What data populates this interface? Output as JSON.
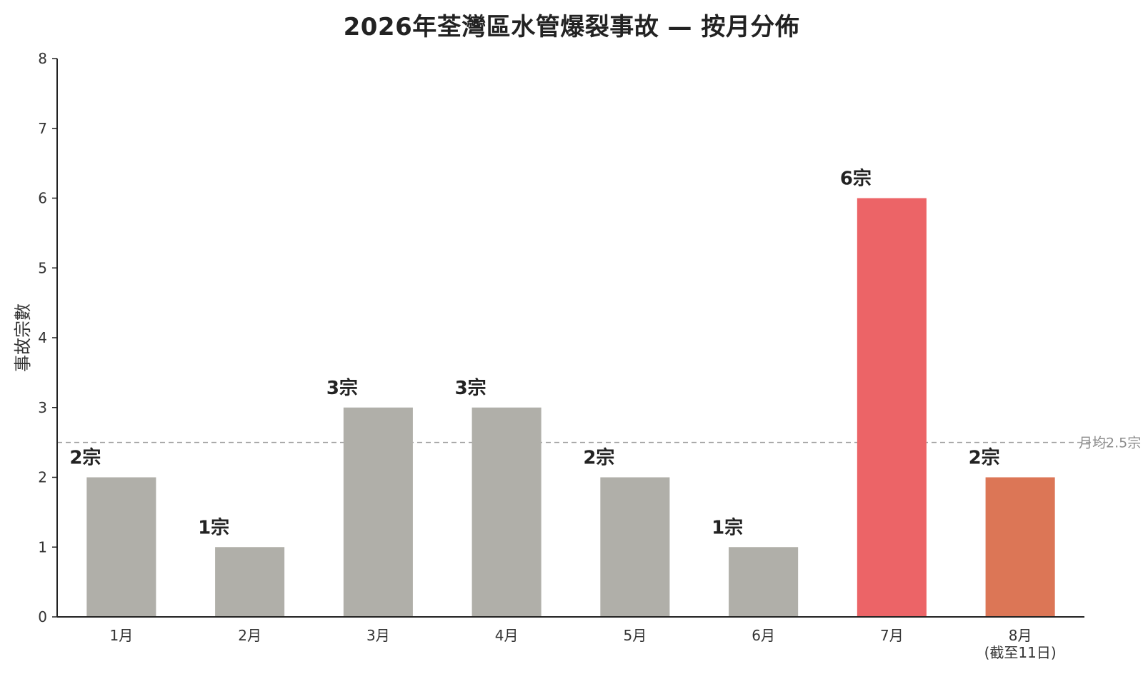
{
  "chart_data": {
    "type": "bar",
    "title": "2026年荃灣區水管爆裂事故 — 按月分佈",
    "xlabel": "",
    "ylabel": "事故宗數",
    "ylim": [
      0,
      8
    ],
    "yticks": [
      0,
      1,
      2,
      3,
      4,
      5,
      6,
      7,
      8
    ],
    "grid": false,
    "categories": [
      "1月",
      "2月",
      "3月",
      "4月",
      "5月",
      "6月",
      "7月",
      "8月"
    ],
    "category_sublabels": [
      "",
      "",
      "",
      "",
      "",
      "",
      "",
      "(截至11日)"
    ],
    "values": [
      2,
      1,
      3,
      3,
      2,
      1,
      6,
      2
    ],
    "data_labels": [
      "2宗",
      "1宗",
      "3宗",
      "3宗",
      "2宗",
      "1宗",
      "6宗",
      "2宗"
    ],
    "bar_colors": [
      "#b0afa9",
      "#b0afa9",
      "#b0afa9",
      "#b0afa9",
      "#b0afa9",
      "#b0afa9",
      "#ec6467",
      "#dc7656"
    ],
    "reference_line": {
      "value": 2.5,
      "label": "月均2.5宗",
      "color": "#9a9a9a",
      "style": "dashed"
    }
  }
}
